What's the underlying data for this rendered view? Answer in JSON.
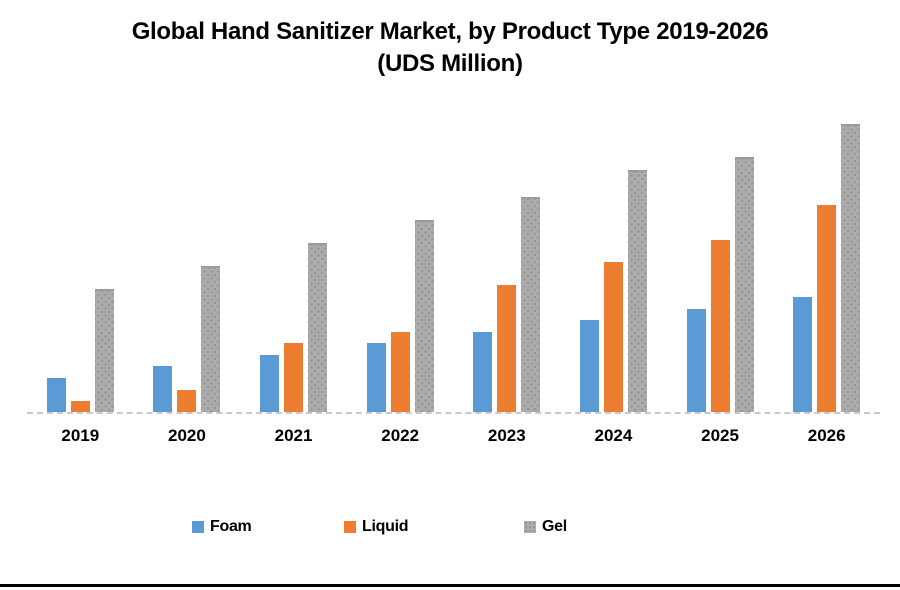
{
  "title": {
    "line1": "Global Hand Sanitizer Market, by Product Type 2019-2026",
    "line2": "(UDS Million)"
  },
  "chart_data": {
    "type": "bar",
    "title": "Global Hand Sanitizer Market, by Product Type 2019-2026 (UDS Million)",
    "categories": [
      "2019",
      "2020",
      "2021",
      "2022",
      "2023",
      "2024",
      "2025",
      "2026"
    ],
    "series": [
      {
        "name": "Foam",
        "color": "#5B9BD5",
        "values": [
          34,
          46,
          57,
          69,
          80,
          92,
          103,
          115
        ]
      },
      {
        "name": "Liquid",
        "color": "#ED7D31",
        "values": [
          11,
          22,
          69,
          80,
          127,
          150,
          172,
          207
        ]
      },
      {
        "name": "Gel",
        "color": "#A6A6A6",
        "pattern": "dotted",
        "values": [
          123,
          146,
          169,
          192,
          215,
          242,
          255,
          288
        ]
      }
    ],
    "xlabel": "",
    "ylabel": "",
    "ylim": [
      0,
      317
    ],
    "grid": false,
    "y_axis_visible": false,
    "legend_position": "bottom"
  }
}
